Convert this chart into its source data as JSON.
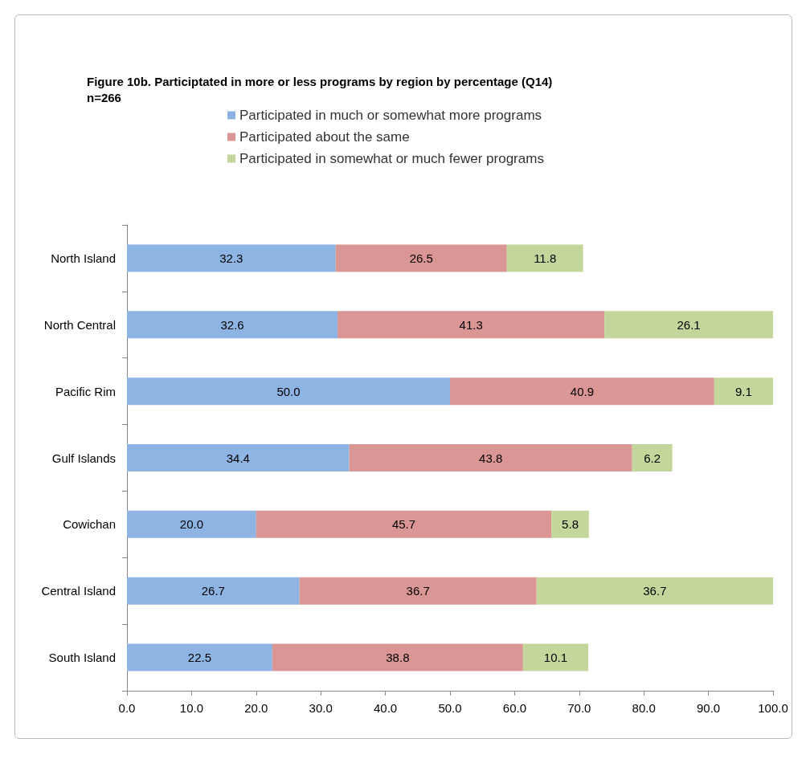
{
  "chart_data": {
    "type": "bar",
    "orientation": "horizontal",
    "stacked": true,
    "title": "Figure 10b. Participtated in more or less programs by region by percentage (Q14)",
    "subtitle": "n=266",
    "categories": [
      "North Island",
      "North Central",
      "Pacific Rim",
      "Gulf Islands",
      "Cowichan",
      "Central Island",
      "South Island"
    ],
    "series": [
      {
        "name": "Participated in much or somewhat more programs",
        "color": "#8eb4e3",
        "values": [
          32.3,
          32.6,
          50.0,
          34.4,
          20.0,
          26.7,
          22.5
        ],
        "value_labels": [
          "32.3",
          "32.6",
          "50.0",
          "34.4",
          "20.0",
          "26.7",
          "22.5"
        ]
      },
      {
        "name": "Participated about the same",
        "color": "#d99694",
        "values": [
          26.5,
          41.3,
          40.9,
          43.8,
          45.7,
          36.7,
          38.8
        ],
        "value_labels": [
          "26.5",
          "41.3",
          "40.9",
          "43.8",
          "45.7",
          "36.7",
          "38.8"
        ]
      },
      {
        "name": "Participated in somewhat or much fewer programs",
        "color": "#c3d69b",
        "values": [
          11.8,
          26.1,
          9.1,
          6.2,
          5.8,
          36.7,
          10.1
        ],
        "value_labels": [
          "11.8",
          "26.1",
          "9.1",
          "6.2",
          "5.8",
          "36.7",
          "10.1"
        ]
      }
    ],
    "xlim": [
      0,
      100
    ],
    "xticks": [
      {
        "value": 0,
        "label": "0.0"
      },
      {
        "value": 10,
        "label": "10.0"
      },
      {
        "value": 20,
        "label": "20.0"
      },
      {
        "value": 30,
        "label": "30.0"
      },
      {
        "value": 40,
        "label": "40.0"
      },
      {
        "value": 50,
        "label": "50.0"
      },
      {
        "value": 60,
        "label": "60.0"
      },
      {
        "value": 70,
        "label": "70.0"
      },
      {
        "value": 80,
        "label": "80.0"
      },
      {
        "value": 90,
        "label": "90.0"
      },
      {
        "value": 100,
        "label": "100.0"
      }
    ],
    "grid": false,
    "legend": "top"
  }
}
